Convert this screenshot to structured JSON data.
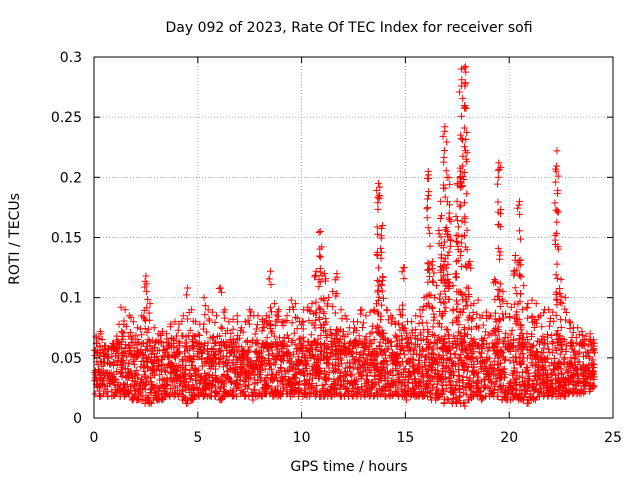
{
  "chart_data": {
    "type": "scatter",
    "title": "Day 092 of 2023, Rate Of TEC Index for receiver sofi",
    "xlabel": "GPS time / hours",
    "ylabel": "ROTI / TECUs",
    "xlim": [
      0,
      25
    ],
    "ylim": [
      0,
      0.3
    ],
    "x_ticks": [
      0,
      5,
      10,
      15,
      20,
      25
    ],
    "x_tick_labels": [
      "0",
      "5",
      "10",
      "15",
      "20",
      "25"
    ],
    "y_ticks": [
      0,
      0.05,
      0.1,
      0.15,
      0.2,
      0.25,
      0.3
    ],
    "y_tick_labels": [
      "0",
      "0.05",
      "0.1",
      "0.15",
      "0.2",
      "0.25",
      "0.3"
    ],
    "grid": true,
    "marker": "+",
    "color": "#ff0000",
    "series": [
      {
        "x": [
          0.0,
          0.2,
          0.4,
          0.6,
          0.8,
          1.0,
          1.2,
          1.4,
          1.6,
          1.8,
          2.0,
          2.2,
          2.4,
          2.6,
          2.8,
          3.0,
          3.2,
          3.4,
          3.6,
          3.8,
          4.0,
          4.2,
          4.4,
          4.6,
          4.8,
          5.0,
          5.2,
          5.4,
          5.6,
          5.8,
          6.0,
          6.2,
          6.4,
          6.6,
          6.8,
          7.0,
          7.2,
          7.4,
          7.6,
          7.8,
          8.0,
          8.2,
          8.4,
          8.6,
          8.8,
          9.0,
          9.2,
          9.4,
          9.6,
          9.8,
          10.0,
          10.2,
          10.4,
          10.6,
          10.8,
          11.0,
          11.2,
          11.4,
          11.6,
          11.8,
          12.0,
          12.2,
          12.4,
          12.6,
          12.8,
          13.0,
          13.2,
          13.4,
          13.6,
          13.8,
          14.0,
          14.2,
          14.4,
          14.6,
          14.8,
          15.0,
          15.2,
          15.4,
          15.6,
          15.8,
          16.0,
          16.2,
          16.4,
          16.6,
          16.8,
          17.0,
          17.2,
          17.4,
          17.6,
          17.8,
          18.0,
          18.2,
          18.4,
          18.6,
          18.8,
          19.0,
          19.2,
          19.4,
          19.6,
          19.8,
          20.0,
          20.2,
          20.4,
          20.6,
          20.8,
          21.0,
          21.2,
          21.4,
          21.6,
          21.8,
          22.0,
          22.2,
          22.4,
          22.6,
          22.8,
          23.0,
          23.2,
          23.4,
          23.6,
          23.8,
          24.0
        ],
        "y_min": [
          0.02,
          0.018,
          0.02,
          0.018,
          0.018,
          0.02,
          0.018,
          0.018,
          0.02,
          0.015,
          0.015,
          0.015,
          0.012,
          0.012,
          0.015,
          0.015,
          0.015,
          0.018,
          0.018,
          0.018,
          0.018,
          0.015,
          0.012,
          0.015,
          0.018,
          0.018,
          0.018,
          0.018,
          0.018,
          0.018,
          0.015,
          0.018,
          0.02,
          0.018,
          0.018,
          0.02,
          0.018,
          0.018,
          0.015,
          0.018,
          0.018,
          0.02,
          0.02,
          0.018,
          0.018,
          0.02,
          0.02,
          0.018,
          0.02,
          0.018,
          0.018,
          0.018,
          0.02,
          0.018,
          0.018,
          0.018,
          0.018,
          0.018,
          0.02,
          0.018,
          0.018,
          0.018,
          0.018,
          0.018,
          0.018,
          0.018,
          0.018,
          0.018,
          0.018,
          0.02,
          0.018,
          0.018,
          0.02,
          0.018,
          0.018,
          0.015,
          0.018,
          0.018,
          0.018,
          0.018,
          0.018,
          0.015,
          0.015,
          0.018,
          0.012,
          0.015,
          0.012,
          0.012,
          0.012,
          0.01,
          0.015,
          0.018,
          0.018,
          0.015,
          0.018,
          0.018,
          0.018,
          0.018,
          0.015,
          0.015,
          0.015,
          0.018,
          0.015,
          0.015,
          0.012,
          0.015,
          0.015,
          0.018,
          0.018,
          0.018,
          0.018,
          0.018,
          0.018,
          0.018,
          0.02,
          0.02,
          0.02,
          0.02,
          0.022,
          0.022,
          0.025
        ],
        "y_max": [
          0.068,
          0.072,
          0.06,
          0.058,
          0.062,
          0.068,
          0.092,
          0.09,
          0.085,
          0.08,
          0.075,
          0.085,
          0.118,
          0.095,
          0.075,
          0.07,
          0.072,
          0.07,
          0.078,
          0.08,
          0.078,
          0.085,
          0.108,
          0.09,
          0.08,
          0.078,
          0.1,
          0.09,
          0.088,
          0.085,
          0.108,
          0.09,
          0.08,
          0.082,
          0.085,
          0.075,
          0.08,
          0.09,
          0.085,
          0.085,
          0.082,
          0.085,
          0.122,
          0.095,
          0.09,
          0.08,
          0.085,
          0.098,
          0.095,
          0.08,
          0.09,
          0.092,
          0.095,
          0.122,
          0.155,
          0.12,
          0.1,
          0.105,
          0.12,
          0.09,
          0.085,
          0.075,
          0.08,
          0.08,
          0.09,
          0.085,
          0.088,
          0.09,
          0.195,
          0.16,
          0.09,
          0.085,
          0.08,
          0.09,
          0.125,
          0.08,
          0.08,
          0.085,
          0.09,
          0.1,
          0.205,
          0.13,
          0.11,
          0.18,
          0.242,
          0.2,
          0.11,
          0.195,
          0.29,
          0.292,
          0.13,
          0.095,
          0.098,
          0.085,
          0.088,
          0.085,
          0.115,
          0.212,
          0.105,
          0.095,
          0.092,
          0.135,
          0.18,
          0.11,
          0.095,
          0.098,
          0.095,
          0.085,
          0.09,
          0.09,
          0.088,
          0.222,
          0.115,
          0.1,
          0.08,
          0.075,
          0.075,
          0.072,
          0.068,
          0.07,
          0.065
        ]
      }
    ]
  }
}
